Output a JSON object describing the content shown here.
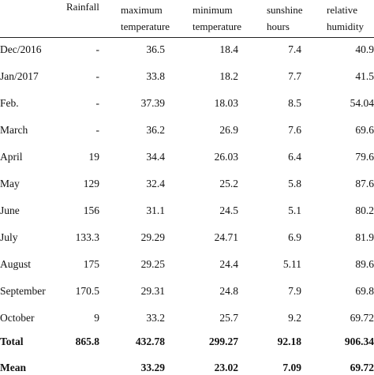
{
  "headers": {
    "rainfall": [
      "Rainfall"
    ],
    "max_temp": [
      "maximum",
      "temperature"
    ],
    "min_temp": [
      "minimum",
      "temperature"
    ],
    "sunshine": [
      "sunshine",
      "hours"
    ],
    "humidity": [
      "relative",
      "humidity"
    ]
  },
  "rows": [
    {
      "label": "Dec/2016",
      "rainfall": "-",
      "max_temp": "36.5",
      "min_temp": "18.4",
      "sunshine": "7.4",
      "humidity": "40.9"
    },
    {
      "label": "Jan/2017",
      "rainfall": "-",
      "max_temp": "33.8",
      "min_temp": "18.2",
      "sunshine": "7.7",
      "humidity": "41.5"
    },
    {
      "label": "Feb.",
      "rainfall": "-",
      "max_temp": "37.39",
      "min_temp": "18.03",
      "sunshine": "8.5",
      "humidity": "54.04"
    },
    {
      "label": "March",
      "rainfall": "-",
      "max_temp": "36.2",
      "min_temp": "26.9",
      "sunshine": "7.6",
      "humidity": "69.6"
    },
    {
      "label": "April",
      "rainfall": "19",
      "max_temp": "34.4",
      "min_temp": "26.03",
      "sunshine": "6.4",
      "humidity": "79.6"
    },
    {
      "label": "May",
      "rainfall": "129",
      "max_temp": "32.4",
      "min_temp": "25.2",
      "sunshine": "5.8",
      "humidity": "87.6"
    },
    {
      "label": "June",
      "rainfall": "156",
      "max_temp": "31.1",
      "min_temp": "24.5",
      "sunshine": "5.1",
      "humidity": "80.2"
    },
    {
      "label": "July",
      "rainfall": "133.3",
      "max_temp": "29.29",
      "min_temp": "24.71",
      "sunshine": "6.9",
      "humidity": "81.9"
    },
    {
      "label": "August",
      "rainfall": "175",
      "max_temp": "29.25",
      "min_temp": "24.4",
      "sunshine": "5.11",
      "humidity": "89.6"
    },
    {
      "label": "September",
      "rainfall": "170.5",
      "max_temp": "29.31",
      "min_temp": "24.8",
      "sunshine": "7.9",
      "humidity": "69.8"
    },
    {
      "label": "October",
      "rainfall": "9",
      "max_temp": "33.2",
      "min_temp": "25.7",
      "sunshine": "9.2",
      "humidity": "69.72"
    }
  ],
  "total": {
    "label": "Total",
    "rainfall": "865.8",
    "max_temp": "432.78",
    "min_temp": "299.27",
    "sunshine": "92.18",
    "humidity": "906.34"
  },
  "mean": {
    "label": "Mean",
    "rainfall": "",
    "max_temp": "33.29",
    "min_temp": "23.02",
    "sunshine": "7.09",
    "humidity": "69.72"
  }
}
